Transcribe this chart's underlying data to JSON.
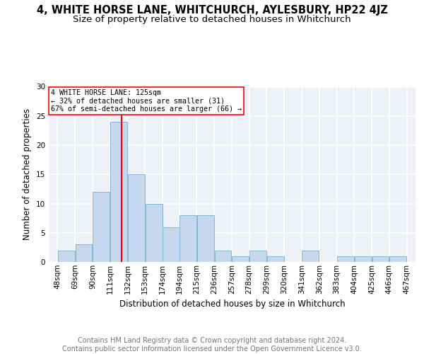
{
  "title": "4, WHITE HORSE LANE, WHITCHURCH, AYLESBURY, HP22 4JZ",
  "subtitle": "Size of property relative to detached houses in Whitchurch",
  "xlabel": "Distribution of detached houses by size in Whitchurch",
  "ylabel": "Number of detached properties",
  "bar_color": "#c5d8ed",
  "bar_edge_color": "#8ab4d4",
  "vline_x": 125,
  "vline_color": "red",
  "annotation_line1": "4 WHITE HORSE LANE: 125sqm",
  "annotation_line2": "← 32% of detached houses are smaller (31)",
  "annotation_line3": "67% of semi-detached houses are larger (66) →",
  "annotation_box_color": "white",
  "annotation_box_edge": "red",
  "footer_line1": "Contains HM Land Registry data © Crown copyright and database right 2024.",
  "footer_line2": "Contains public sector information licensed under the Open Government Licence v3.0.",
  "bin_edges": [
    48,
    69,
    90,
    111,
    132,
    153,
    174,
    194,
    215,
    236,
    257,
    278,
    299,
    320,
    341,
    362,
    383,
    404,
    425,
    446,
    467
  ],
  "bin_labels": [
    "48sqm",
    "69sqm",
    "90sqm",
    "111sqm",
    "132sqm",
    "153sqm",
    "174sqm",
    "194sqm",
    "215sqm",
    "236sqm",
    "257sqm",
    "278sqm",
    "299sqm",
    "320sqm",
    "341sqm",
    "362sqm",
    "383sqm",
    "404sqm",
    "425sqm",
    "446sqm",
    "467sqm"
  ],
  "counts": [
    2,
    3,
    12,
    24,
    15,
    10,
    6,
    8,
    8,
    2,
    1,
    2,
    1,
    0,
    2,
    0,
    1,
    1,
    1,
    1
  ],
  "ylim": [
    0,
    30
  ],
  "yticks": [
    0,
    5,
    10,
    15,
    20,
    25,
    30
  ],
  "background_color": "#eef2f7",
  "grid_color": "white",
  "title_fontsize": 10.5,
  "subtitle_fontsize": 9.5,
  "axis_label_fontsize": 8.5,
  "tick_fontsize": 7.5,
  "footer_fontsize": 7.0
}
